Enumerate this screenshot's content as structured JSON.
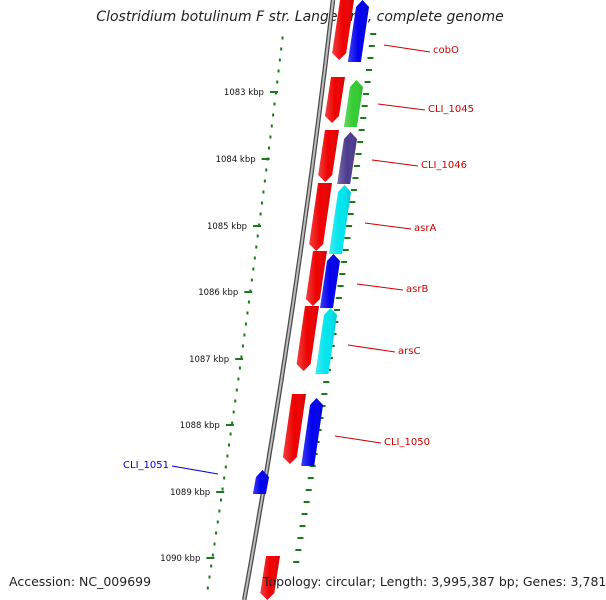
{
  "title": "Clostridium botulinum F str. Langeland, complete genome",
  "footer": {
    "accession": "Accession: NC_009699",
    "summary": "Topology: circular; Length: 3,995,387 bp; Genes: 3,781"
  },
  "ruler": {
    "ticks": [
      "1083 kbp",
      "1084 kbp",
      "1085 kbp",
      "1086 kbp",
      "1087 kbp",
      "1088 kbp",
      "1089 kbp",
      "1090 kbp"
    ]
  },
  "colors": {
    "backbone": "#7a7a7a",
    "ruler": "#1a7a1a",
    "gene_red": "#ee0000",
    "gene_blue": "#0000ee",
    "gene_green": "#33cc33",
    "gene_purple": "#4b3c8c",
    "gene_cyan": "#00e5ee",
    "label_red": "#cc0000",
    "label_blue": "#0000cc"
  },
  "genes": [
    {
      "label": "cobO",
      "color": "gene_blue"
    },
    {
      "label": "CLI_1045",
      "color": "gene_green"
    },
    {
      "label": "CLI_1046",
      "color": "gene_purple"
    },
    {
      "label": "asrA",
      "color": "gene_cyan"
    },
    {
      "label": "asrB",
      "color": "gene_blue"
    },
    {
      "label": "arsC",
      "color": "gene_cyan"
    },
    {
      "label": "CLI_1050",
      "color": "gene_blue"
    },
    {
      "label": "CLI_1051",
      "color": "gene_blue"
    }
  ]
}
